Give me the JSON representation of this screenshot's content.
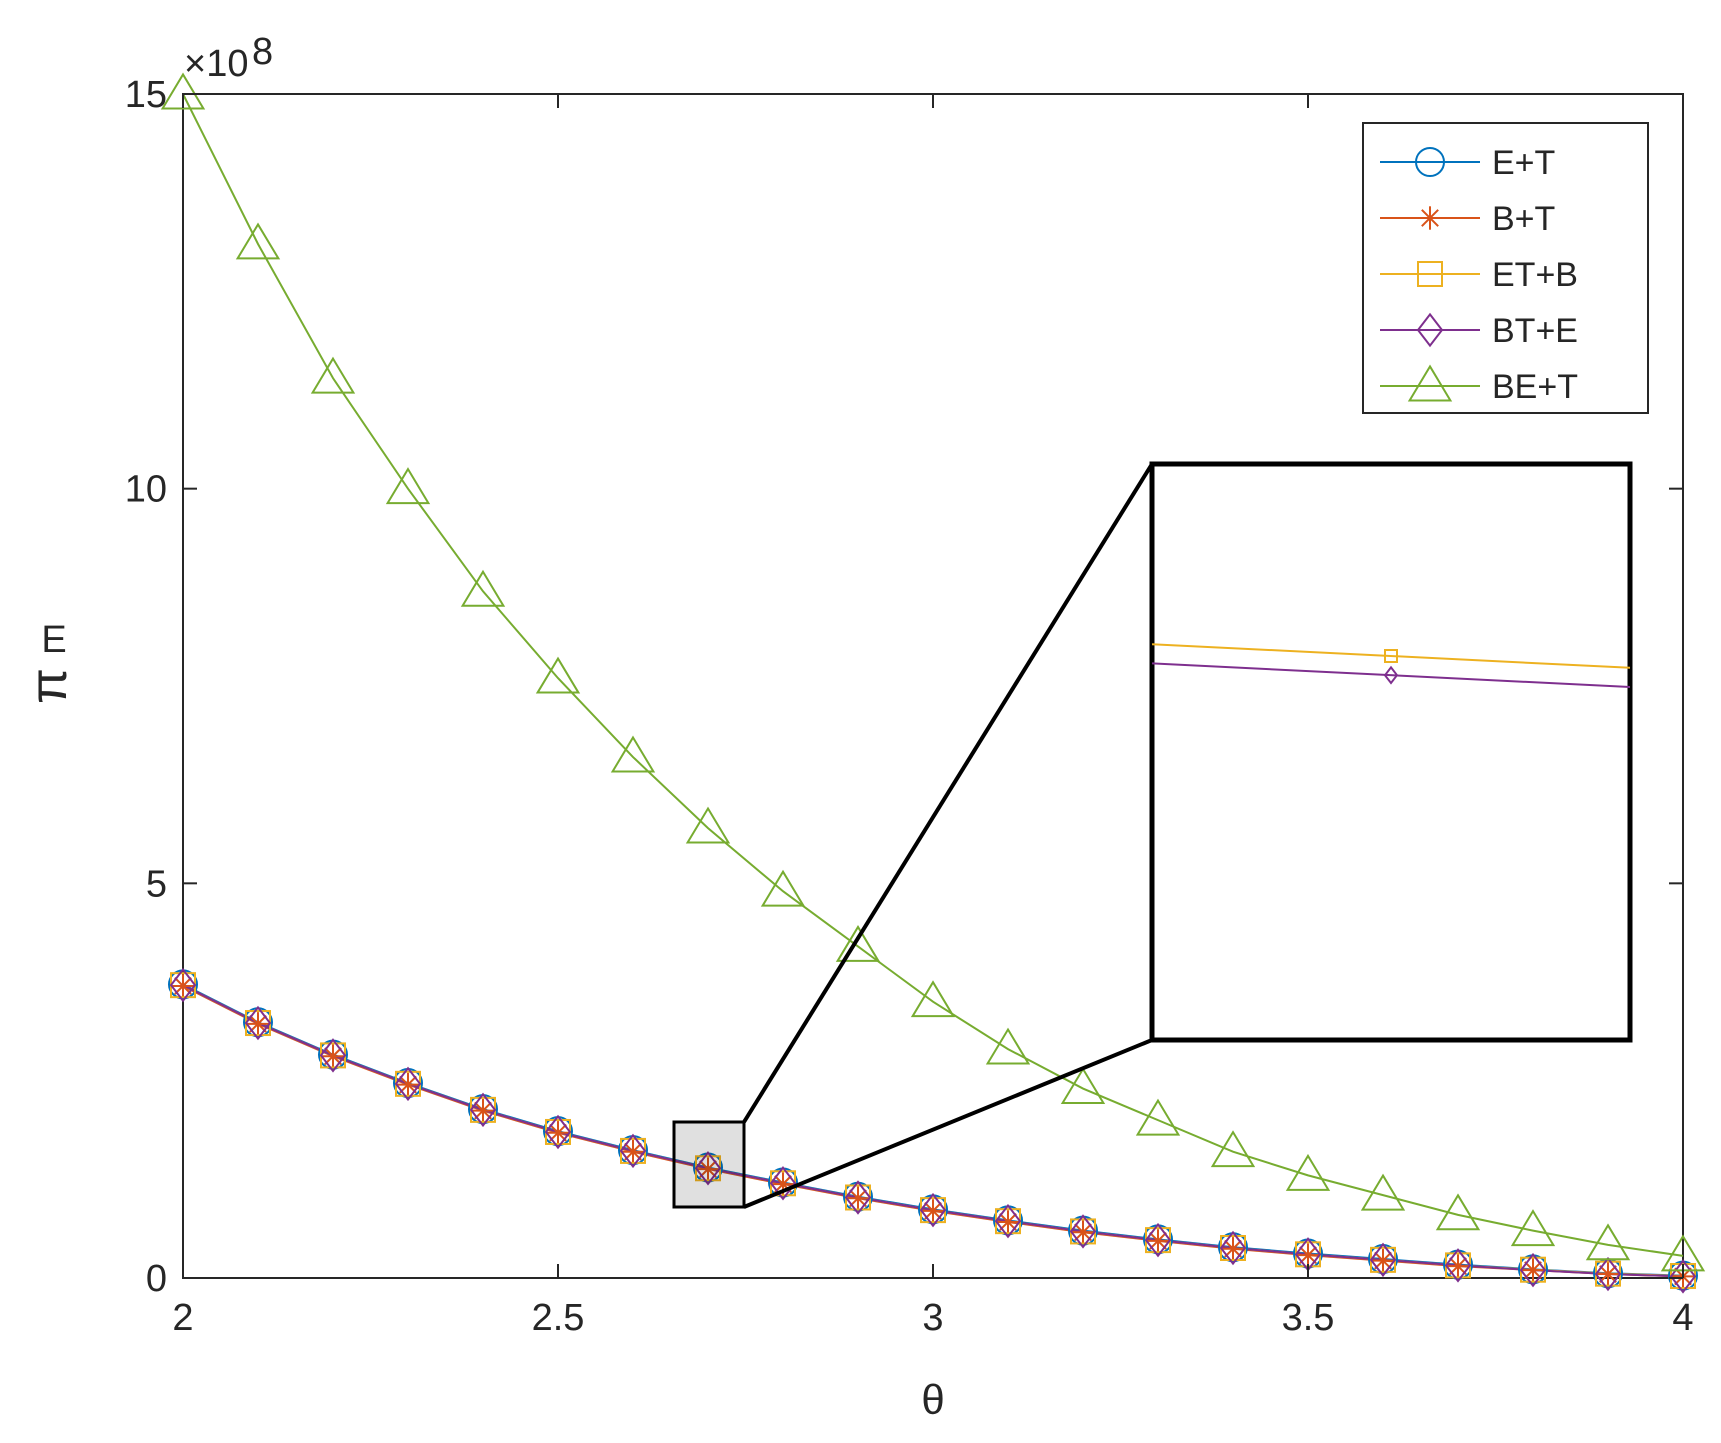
{
  "chart_data": {
    "type": "line",
    "title": "",
    "xlabel": "θ",
    "ylabel": "π",
    "ylabel_subscript": "E",
    "y_exponent_label": "×10",
    "y_exponent_power": "8",
    "xlim": [
      2,
      4
    ],
    "ylim": [
      0,
      15
    ],
    "x_ticks": [
      2,
      2.5,
      3,
      3.5,
      4
    ],
    "x_tick_labels": [
      "2",
      "2.5",
      "3",
      "3.5",
      "4"
    ],
    "y_ticks": [
      0,
      5,
      10,
      15
    ],
    "y_tick_labels": [
      "0",
      "5",
      "10",
      "15"
    ],
    "grid": false,
    "legend_position": "top-right",
    "x": [
      2.0,
      2.1,
      2.2,
      2.3,
      2.4,
      2.5,
      2.6,
      2.7,
      2.8,
      2.9,
      3.0,
      3.1,
      3.2,
      3.3,
      3.4,
      3.5,
      3.6,
      3.7,
      3.8,
      3.9,
      4.0
    ],
    "series": [
      {
        "name": "E+T",
        "color": "#0072BD",
        "marker": "circle",
        "values": [
          3.72,
          3.24,
          2.83,
          2.47,
          2.14,
          1.86,
          1.62,
          1.4,
          1.21,
          1.03,
          0.87,
          0.73,
          0.6,
          0.49,
          0.39,
          0.31,
          0.24,
          0.17,
          0.11,
          0.06,
          0.03
        ]
      },
      {
        "name": "B+T",
        "color": "#D95319",
        "marker": "asterisk",
        "values": [
          3.7,
          3.22,
          2.81,
          2.45,
          2.12,
          1.84,
          1.6,
          1.38,
          1.19,
          1.01,
          0.85,
          0.71,
          0.58,
          0.47,
          0.37,
          0.29,
          0.22,
          0.15,
          0.1,
          0.05,
          0.02
        ]
      },
      {
        "name": "ET+B",
        "color": "#EDB120",
        "marker": "square",
        "values": [
          3.71,
          3.23,
          2.82,
          2.46,
          2.13,
          1.85,
          1.61,
          1.39,
          1.2,
          1.02,
          0.86,
          0.72,
          0.59,
          0.48,
          0.38,
          0.3,
          0.23,
          0.16,
          0.105,
          0.055,
          0.025
        ]
      },
      {
        "name": "BT+E",
        "color": "#7E2F8E",
        "marker": "diamond",
        "values": [
          3.71,
          3.23,
          2.82,
          2.46,
          2.13,
          1.85,
          1.61,
          1.39,
          1.2,
          1.02,
          0.86,
          0.72,
          0.59,
          0.48,
          0.38,
          0.3,
          0.23,
          0.16,
          0.1,
          0.05,
          0.02
        ]
      },
      {
        "name": "BE+T",
        "color": "#77AC30",
        "marker": "triangle",
        "values": [
          15.0,
          13.1,
          11.4,
          10.0,
          8.7,
          7.6,
          6.6,
          5.7,
          4.9,
          4.2,
          3.5,
          2.9,
          2.4,
          2.0,
          1.6,
          1.3,
          1.05,
          0.8,
          0.6,
          0.42,
          0.28
        ]
      }
    ],
    "inset": {
      "description_source": "zoomed view of region around θ=2.7",
      "x_range": [
        2.66,
        2.74
      ],
      "y_range": [
        1.1,
        1.7
      ],
      "marker_x": 2.7
    }
  }
}
